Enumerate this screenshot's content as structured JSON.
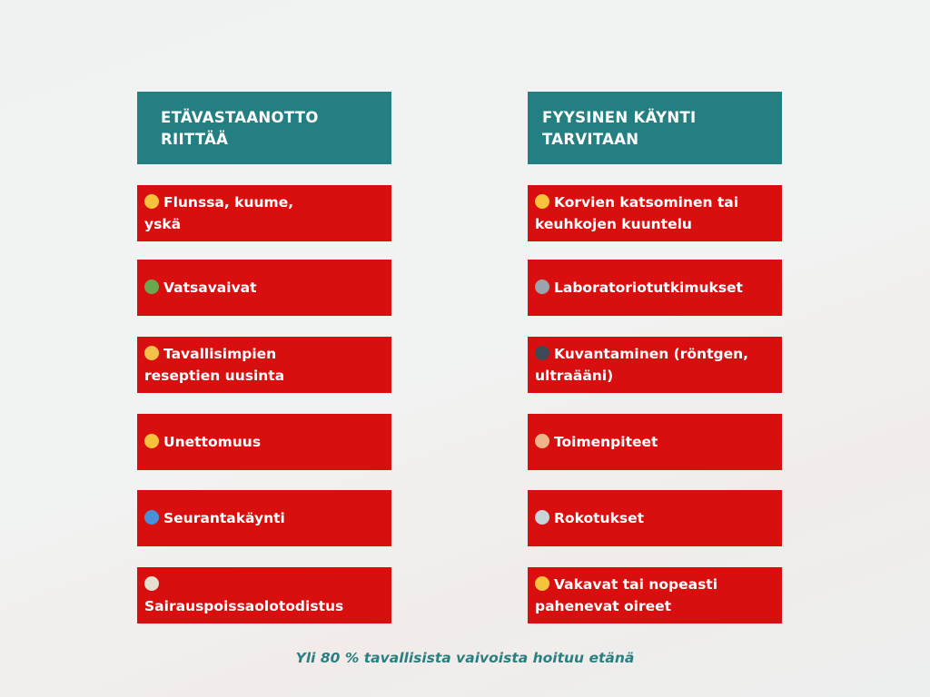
{
  "colors": {
    "header": "#247f82",
    "card": "#d90e0e",
    "footer": "#2a7f80"
  },
  "left": {
    "title": "ETÄVASTAANOTTO RIITTÄÄ",
    "items": [
      {
        "icon": "sneezing-face-icon",
        "color": "#f7c23c",
        "label": "Flunssa, kuume, yskä"
      },
      {
        "icon": "nauseated-face-icon",
        "color": "#6aa84f",
        "label": "Vatsavaivat"
      },
      {
        "icon": "pill-icon",
        "color": "#f4c24a",
        "label": "Tavallisimpien reseptien uusinta"
      },
      {
        "icon": "sleeping-face-icon",
        "color": "#f7c23c",
        "label": "Unettomuus"
      },
      {
        "icon": "refresh-icon",
        "color": "#4a90d9",
        "label": "Seurantakäynti"
      },
      {
        "icon": "clipboard-icon",
        "color": "#e8e0cf",
        "label": "Sairauspoissaolotodistus"
      }
    ]
  },
  "right": {
    "title": "FYYSINEN KÄYNTI TARVITAAN",
    "items": [
      {
        "icon": "ear-icon",
        "color": "#f7c23c",
        "label": "Korvien katsominen tai keuhkojen kuuntelu"
      },
      {
        "icon": "microscope-icon",
        "color": "#9aa4ab",
        "label": "Laboratoriotutkimukset"
      },
      {
        "icon": "camera-icon",
        "color": "#3c4a55",
        "label": "Kuvantaminen (röntgen, ultraääni)"
      },
      {
        "icon": "bandage-icon",
        "color": "#f0b48a",
        "label": "Toimenpiteet"
      },
      {
        "icon": "syringe-icon",
        "color": "#c9d3da",
        "label": "Rokotukset"
      },
      {
        "icon": "warning-icon",
        "color": "#f7c23c",
        "label": "Vakavat tai nopeasti pahenevat oireet"
      }
    ]
  },
  "footer": "Yli 80 % tavallisista vaivoista hoituu etänä"
}
